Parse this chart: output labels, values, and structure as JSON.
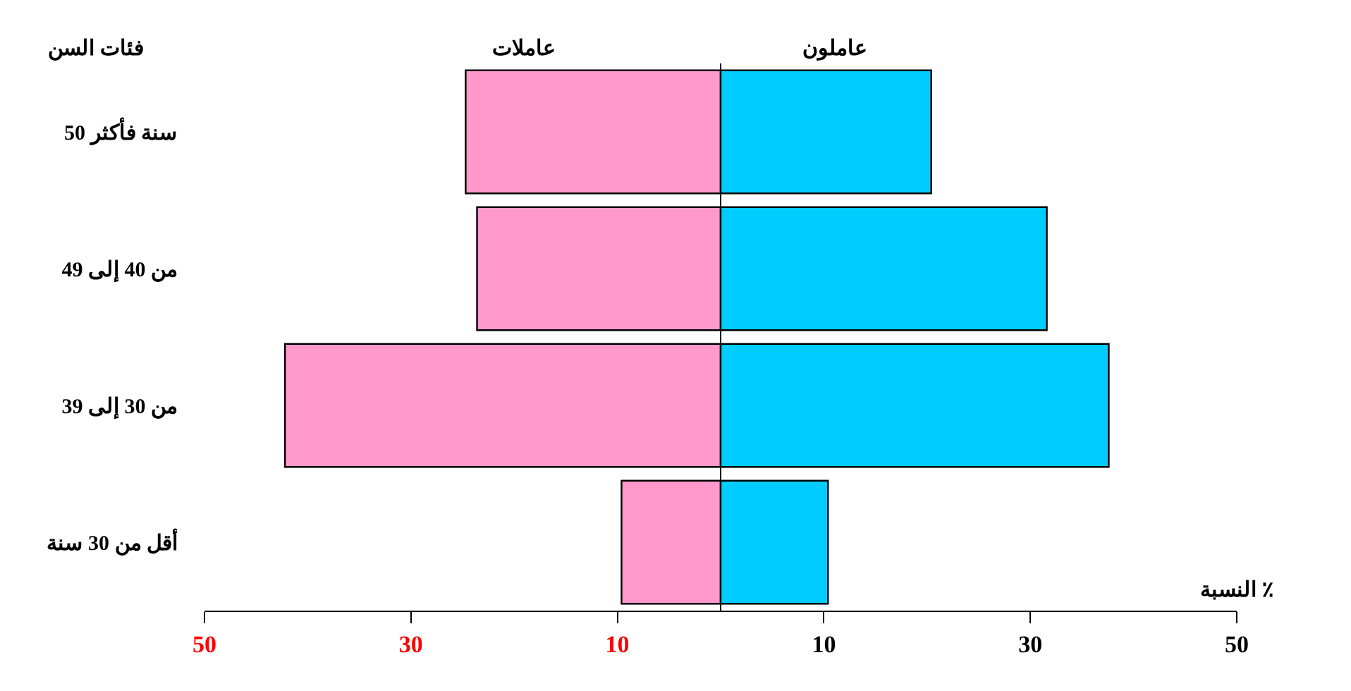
{
  "chart_data": {
    "type": "bar",
    "orientation": "horizontal",
    "xlabel": "النسبة ٪",
    "ylabel": "فئات السن",
    "categories": [
      "50 سنة فأكثر",
      "من 40 إلى 49",
      "من 30 إلى 39",
      "أقل من 30 سنة"
    ],
    "series": [
      {
        "name": "عاملات",
        "color": "#ff99cc",
        "values": [
          -24.7,
          -23.6,
          -42.2,
          -9.6
        ]
      },
      {
        "name": "عاملون",
        "color": "#00ccff",
        "values": [
          20.4,
          31.6,
          37.6,
          10.4
        ]
      }
    ],
    "xlim": [
      -50,
      50
    ],
    "xticks": [
      {
        "value": -50,
        "label": "50"
      },
      {
        "value": -30,
        "label": "30"
      },
      {
        "value": -10,
        "label": "10"
      },
      10,
      30,
      50
    ],
    "legend": false,
    "stacked": true
  }
}
